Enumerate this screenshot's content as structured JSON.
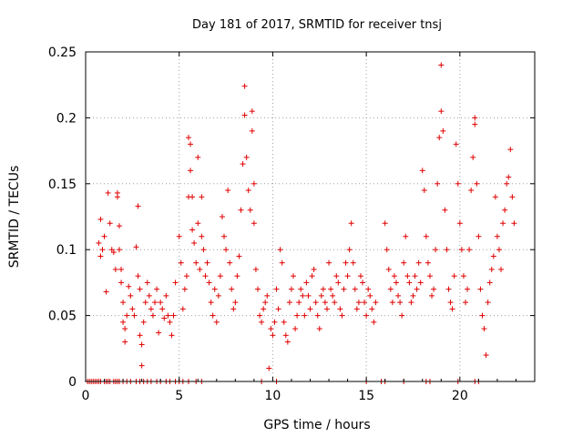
{
  "chart_data": {
    "type": "scatter",
    "title": "Day 181 of 2017, SRMTID for receiver tnsj",
    "xlabel": "GPS time / hours",
    "ylabel": "SRMTID / TECUs",
    "xlim": [
      0,
      24
    ],
    "ylim": [
      0,
      0.25
    ],
    "xticks": [
      0,
      5,
      10,
      15,
      20
    ],
    "yticks": [
      0,
      0.05,
      0.1,
      0.15,
      0.2,
      0.25
    ],
    "xtick_labels": [
      "0",
      "5",
      "10",
      "15",
      "20"
    ],
    "ytick_labels": [
      "0",
      "0.05",
      "0.1",
      "0.15",
      "0.2",
      "0.25"
    ],
    "grid": true,
    "marker": "+",
    "color": "#e00000",
    "series": [
      {
        "name": "SRMTID",
        "points": [
          [
            0.1,
            0
          ],
          [
            0.2,
            0
          ],
          [
            0.3,
            0
          ],
          [
            0.4,
            0
          ],
          [
            0.5,
            0
          ],
          [
            0.6,
            0
          ],
          [
            0.7,
            0
          ],
          [
            0.8,
            0
          ],
          [
            1.0,
            0
          ],
          [
            1.1,
            0
          ],
          [
            1.2,
            0
          ],
          [
            1.3,
            0
          ],
          [
            1.5,
            0
          ],
          [
            1.6,
            0
          ],
          [
            1.7,
            0
          ],
          [
            1.8,
            0
          ],
          [
            2.0,
            0
          ],
          [
            2.2,
            0
          ],
          [
            2.4,
            0
          ],
          [
            2.7,
            0
          ],
          [
            2.9,
            0
          ],
          [
            3.1,
            0
          ],
          [
            3.3,
            0
          ],
          [
            3.5,
            0
          ],
          [
            3.8,
            0
          ],
          [
            4.0,
            0
          ],
          [
            4.3,
            0
          ],
          [
            4.5,
            0
          ],
          [
            4.8,
            0
          ],
          [
            5.0,
            0
          ],
          [
            5.2,
            0
          ],
          [
            5.5,
            0
          ],
          [
            5.9,
            0
          ],
          [
            6.2,
            0
          ],
          [
            9.4,
            0
          ],
          [
            10.2,
            0
          ],
          [
            15.0,
            0
          ],
          [
            15.8,
            0
          ],
          [
            16.0,
            0
          ],
          [
            17.0,
            0
          ],
          [
            18.2,
            0
          ],
          [
            18.4,
            0
          ],
          [
            19.9,
            0
          ],
          [
            20.8,
            0
          ],
          [
            21.0,
            0
          ],
          [
            0.7,
            0.105
          ],
          [
            0.8,
            0.095
          ],
          [
            0.8,
            0.123
          ],
          [
            0.9,
            0.1
          ],
          [
            1.0,
            0.11
          ],
          [
            1.1,
            0.068
          ],
          [
            1.2,
            0.143
          ],
          [
            1.3,
            0.12
          ],
          [
            1.4,
            0.1
          ],
          [
            1.5,
            0.098
          ],
          [
            1.6,
            0.085
          ],
          [
            1.7,
            0.143
          ],
          [
            1.7,
            0.14
          ],
          [
            1.8,
            0.118
          ],
          [
            1.8,
            0.1
          ],
          [
            1.9,
            0.085
          ],
          [
            1.9,
            0.075
          ],
          [
            2.0,
            0.06
          ],
          [
            2.0,
            0.045
          ],
          [
            2.1,
            0.04
          ],
          [
            2.1,
            0.03
          ],
          [
            2.2,
            0.05
          ],
          [
            2.3,
            0.072
          ],
          [
            2.4,
            0.065
          ],
          [
            2.5,
            0.055
          ],
          [
            2.6,
            0.05
          ],
          [
            2.7,
            0.102
          ],
          [
            2.8,
            0.08
          ],
          [
            2.8,
            0.133
          ],
          [
            2.9,
            0.07
          ],
          [
            2.9,
            0.035
          ],
          [
            3.0,
            0.028
          ],
          [
            3.0,
            0.012
          ],
          [
            3.1,
            0.045
          ],
          [
            3.2,
            0.06
          ],
          [
            3.3,
            0.075
          ],
          [
            3.4,
            0.065
          ],
          [
            3.5,
            0.055
          ],
          [
            3.6,
            0.05
          ],
          [
            3.7,
            0.06
          ],
          [
            3.8,
            0.07
          ],
          [
            3.9,
            0.037
          ],
          [
            4.0,
            0.06
          ],
          [
            4.1,
            0.055
          ],
          [
            4.2,
            0.048
          ],
          [
            4.3,
            0.065
          ],
          [
            4.4,
            0.05
          ],
          [
            4.5,
            0.045
          ],
          [
            4.6,
            0.035
          ],
          [
            4.7,
            0.05
          ],
          [
            4.8,
            0.075
          ],
          [
            5.0,
            0.11
          ],
          [
            5.1,
            0.09
          ],
          [
            5.2,
            0.055
          ],
          [
            5.3,
            0.07
          ],
          [
            5.4,
            0.08
          ],
          [
            5.5,
            0.14
          ],
          [
            5.5,
            0.185
          ],
          [
            5.6,
            0.18
          ],
          [
            5.6,
            0.16
          ],
          [
            5.7,
            0.115
          ],
          [
            5.7,
            0.14
          ],
          [
            5.8,
            0.105
          ],
          [
            5.9,
            0.09
          ],
          [
            6.0,
            0.17
          ],
          [
            6.0,
            0.12
          ],
          [
            6.1,
            0.085
          ],
          [
            6.2,
            0.14
          ],
          [
            6.2,
            0.11
          ],
          [
            6.3,
            0.1
          ],
          [
            6.4,
            0.08
          ],
          [
            6.5,
            0.09
          ],
          [
            6.6,
            0.075
          ],
          [
            6.7,
            0.06
          ],
          [
            6.8,
            0.05
          ],
          [
            6.9,
            0.07
          ],
          [
            7.0,
            0.045
          ],
          [
            7.1,
            0.065
          ],
          [
            7.2,
            0.08
          ],
          [
            7.3,
            0.125
          ],
          [
            7.4,
            0.11
          ],
          [
            7.5,
            0.1
          ],
          [
            7.6,
            0.145
          ],
          [
            7.7,
            0.09
          ],
          [
            7.8,
            0.07
          ],
          [
            7.9,
            0.055
          ],
          [
            8.0,
            0.06
          ],
          [
            8.1,
            0.08
          ],
          [
            8.2,
            0.095
          ],
          [
            8.3,
            0.13
          ],
          [
            8.4,
            0.165
          ],
          [
            8.5,
            0.224
          ],
          [
            8.5,
            0.202
          ],
          [
            8.6,
            0.17
          ],
          [
            8.7,
            0.145
          ],
          [
            8.8,
            0.13
          ],
          [
            8.9,
            0.19
          ],
          [
            8.9,
            0.205
          ],
          [
            9.0,
            0.15
          ],
          [
            9.0,
            0.12
          ],
          [
            9.1,
            0.085
          ],
          [
            9.2,
            0.07
          ],
          [
            9.3,
            0.05
          ],
          [
            9.4,
            0.045
          ],
          [
            9.5,
            0.055
          ],
          [
            9.6,
            0.06
          ],
          [
            9.7,
            0.065
          ],
          [
            9.8,
            0.01
          ],
          [
            9.9,
            0.04
          ],
          [
            10.0,
            0.035
          ],
          [
            10.1,
            0.045
          ],
          [
            10.2,
            0.07
          ],
          [
            10.3,
            0.055
          ],
          [
            10.4,
            0.1
          ],
          [
            10.5,
            0.09
          ],
          [
            10.6,
            0.045
          ],
          [
            10.7,
            0.035
          ],
          [
            10.8,
            0.03
          ],
          [
            10.9,
            0.06
          ],
          [
            11.0,
            0.07
          ],
          [
            11.1,
            0.08
          ],
          [
            11.2,
            0.04
          ],
          [
            11.3,
            0.05
          ],
          [
            11.4,
            0.06
          ],
          [
            11.5,
            0.07
          ],
          [
            11.6,
            0.065
          ],
          [
            11.7,
            0.05
          ],
          [
            11.8,
            0.075
          ],
          [
            11.9,
            0.065
          ],
          [
            12.0,
            0.055
          ],
          [
            12.1,
            0.08
          ],
          [
            12.2,
            0.085
          ],
          [
            12.3,
            0.06
          ],
          [
            12.4,
            0.05
          ],
          [
            12.5,
            0.04
          ],
          [
            12.6,
            0.065
          ],
          [
            12.7,
            0.07
          ],
          [
            12.8,
            0.06
          ],
          [
            12.9,
            0.055
          ],
          [
            13.0,
            0.09
          ],
          [
            13.1,
            0.07
          ],
          [
            13.2,
            0.065
          ],
          [
            13.3,
            0.06
          ],
          [
            13.4,
            0.08
          ],
          [
            13.5,
            0.075
          ],
          [
            13.6,
            0.055
          ],
          [
            13.7,
            0.05
          ],
          [
            13.8,
            0.07
          ],
          [
            13.9,
            0.09
          ],
          [
            14.0,
            0.08
          ],
          [
            14.1,
            0.1
          ],
          [
            14.2,
            0.12
          ],
          [
            14.3,
            0.09
          ],
          [
            14.4,
            0.07
          ],
          [
            14.5,
            0.055
          ],
          [
            14.6,
            0.06
          ],
          [
            14.7,
            0.08
          ],
          [
            14.8,
            0.075
          ],
          [
            14.9,
            0.06
          ],
          [
            15.0,
            0.05
          ],
          [
            15.1,
            0.07
          ],
          [
            15.2,
            0.065
          ],
          [
            15.3,
            0.055
          ],
          [
            15.4,
            0.045
          ],
          [
            15.5,
            0.06
          ],
          [
            16.0,
            0.12
          ],
          [
            16.1,
            0.1
          ],
          [
            16.2,
            0.085
          ],
          [
            16.3,
            0.07
          ],
          [
            16.4,
            0.06
          ],
          [
            16.5,
            0.08
          ],
          [
            16.6,
            0.075
          ],
          [
            16.7,
            0.065
          ],
          [
            16.8,
            0.06
          ],
          [
            16.9,
            0.05
          ],
          [
            17.0,
            0.09
          ],
          [
            17.1,
            0.11
          ],
          [
            17.2,
            0.08
          ],
          [
            17.3,
            0.075
          ],
          [
            17.4,
            0.06
          ],
          [
            17.5,
            0.065
          ],
          [
            17.6,
            0.08
          ],
          [
            17.7,
            0.07
          ],
          [
            17.8,
            0.09
          ],
          [
            17.9,
            0.075
          ],
          [
            18.0,
            0.16
          ],
          [
            18.1,
            0.145
          ],
          [
            18.2,
            0.11
          ],
          [
            18.3,
            0.09
          ],
          [
            18.4,
            0.08
          ],
          [
            18.5,
            0.065
          ],
          [
            18.6,
            0.07
          ],
          [
            18.7,
            0.1
          ],
          [
            18.8,
            0.15
          ],
          [
            18.9,
            0.185
          ],
          [
            19.0,
            0.24
          ],
          [
            19.0,
            0.205
          ],
          [
            19.1,
            0.19
          ],
          [
            19.2,
            0.13
          ],
          [
            19.3,
            0.1
          ],
          [
            19.4,
            0.07
          ],
          [
            19.5,
            0.06
          ],
          [
            19.6,
            0.055
          ],
          [
            19.7,
            0.08
          ],
          [
            19.8,
            0.18
          ],
          [
            19.9,
            0.15
          ],
          [
            20.0,
            0.12
          ],
          [
            20.1,
            0.1
          ],
          [
            20.2,
            0.08
          ],
          [
            20.3,
            0.06
          ],
          [
            20.4,
            0.07
          ],
          [
            20.5,
            0.1
          ],
          [
            20.6,
            0.145
          ],
          [
            20.7,
            0.17
          ],
          [
            20.8,
            0.195
          ],
          [
            20.8,
            0.2
          ],
          [
            20.9,
            0.15
          ],
          [
            21.0,
            0.11
          ],
          [
            21.1,
            0.07
          ],
          [
            21.2,
            0.05
          ],
          [
            21.3,
            0.04
          ],
          [
            21.4,
            0.02
          ],
          [
            21.5,
            0.06
          ],
          [
            21.6,
            0.075
          ],
          [
            21.7,
            0.085
          ],
          [
            21.8,
            0.095
          ],
          [
            21.9,
            0.14
          ],
          [
            22.0,
            0.11
          ],
          [
            22.1,
            0.1
          ],
          [
            22.2,
            0.085
          ],
          [
            22.3,
            0.12
          ],
          [
            22.4,
            0.13
          ],
          [
            22.5,
            0.15
          ],
          [
            22.6,
            0.155
          ],
          [
            22.7,
            0.176
          ],
          [
            22.8,
            0.14
          ],
          [
            22.9,
            0.12
          ]
        ]
      }
    ]
  }
}
